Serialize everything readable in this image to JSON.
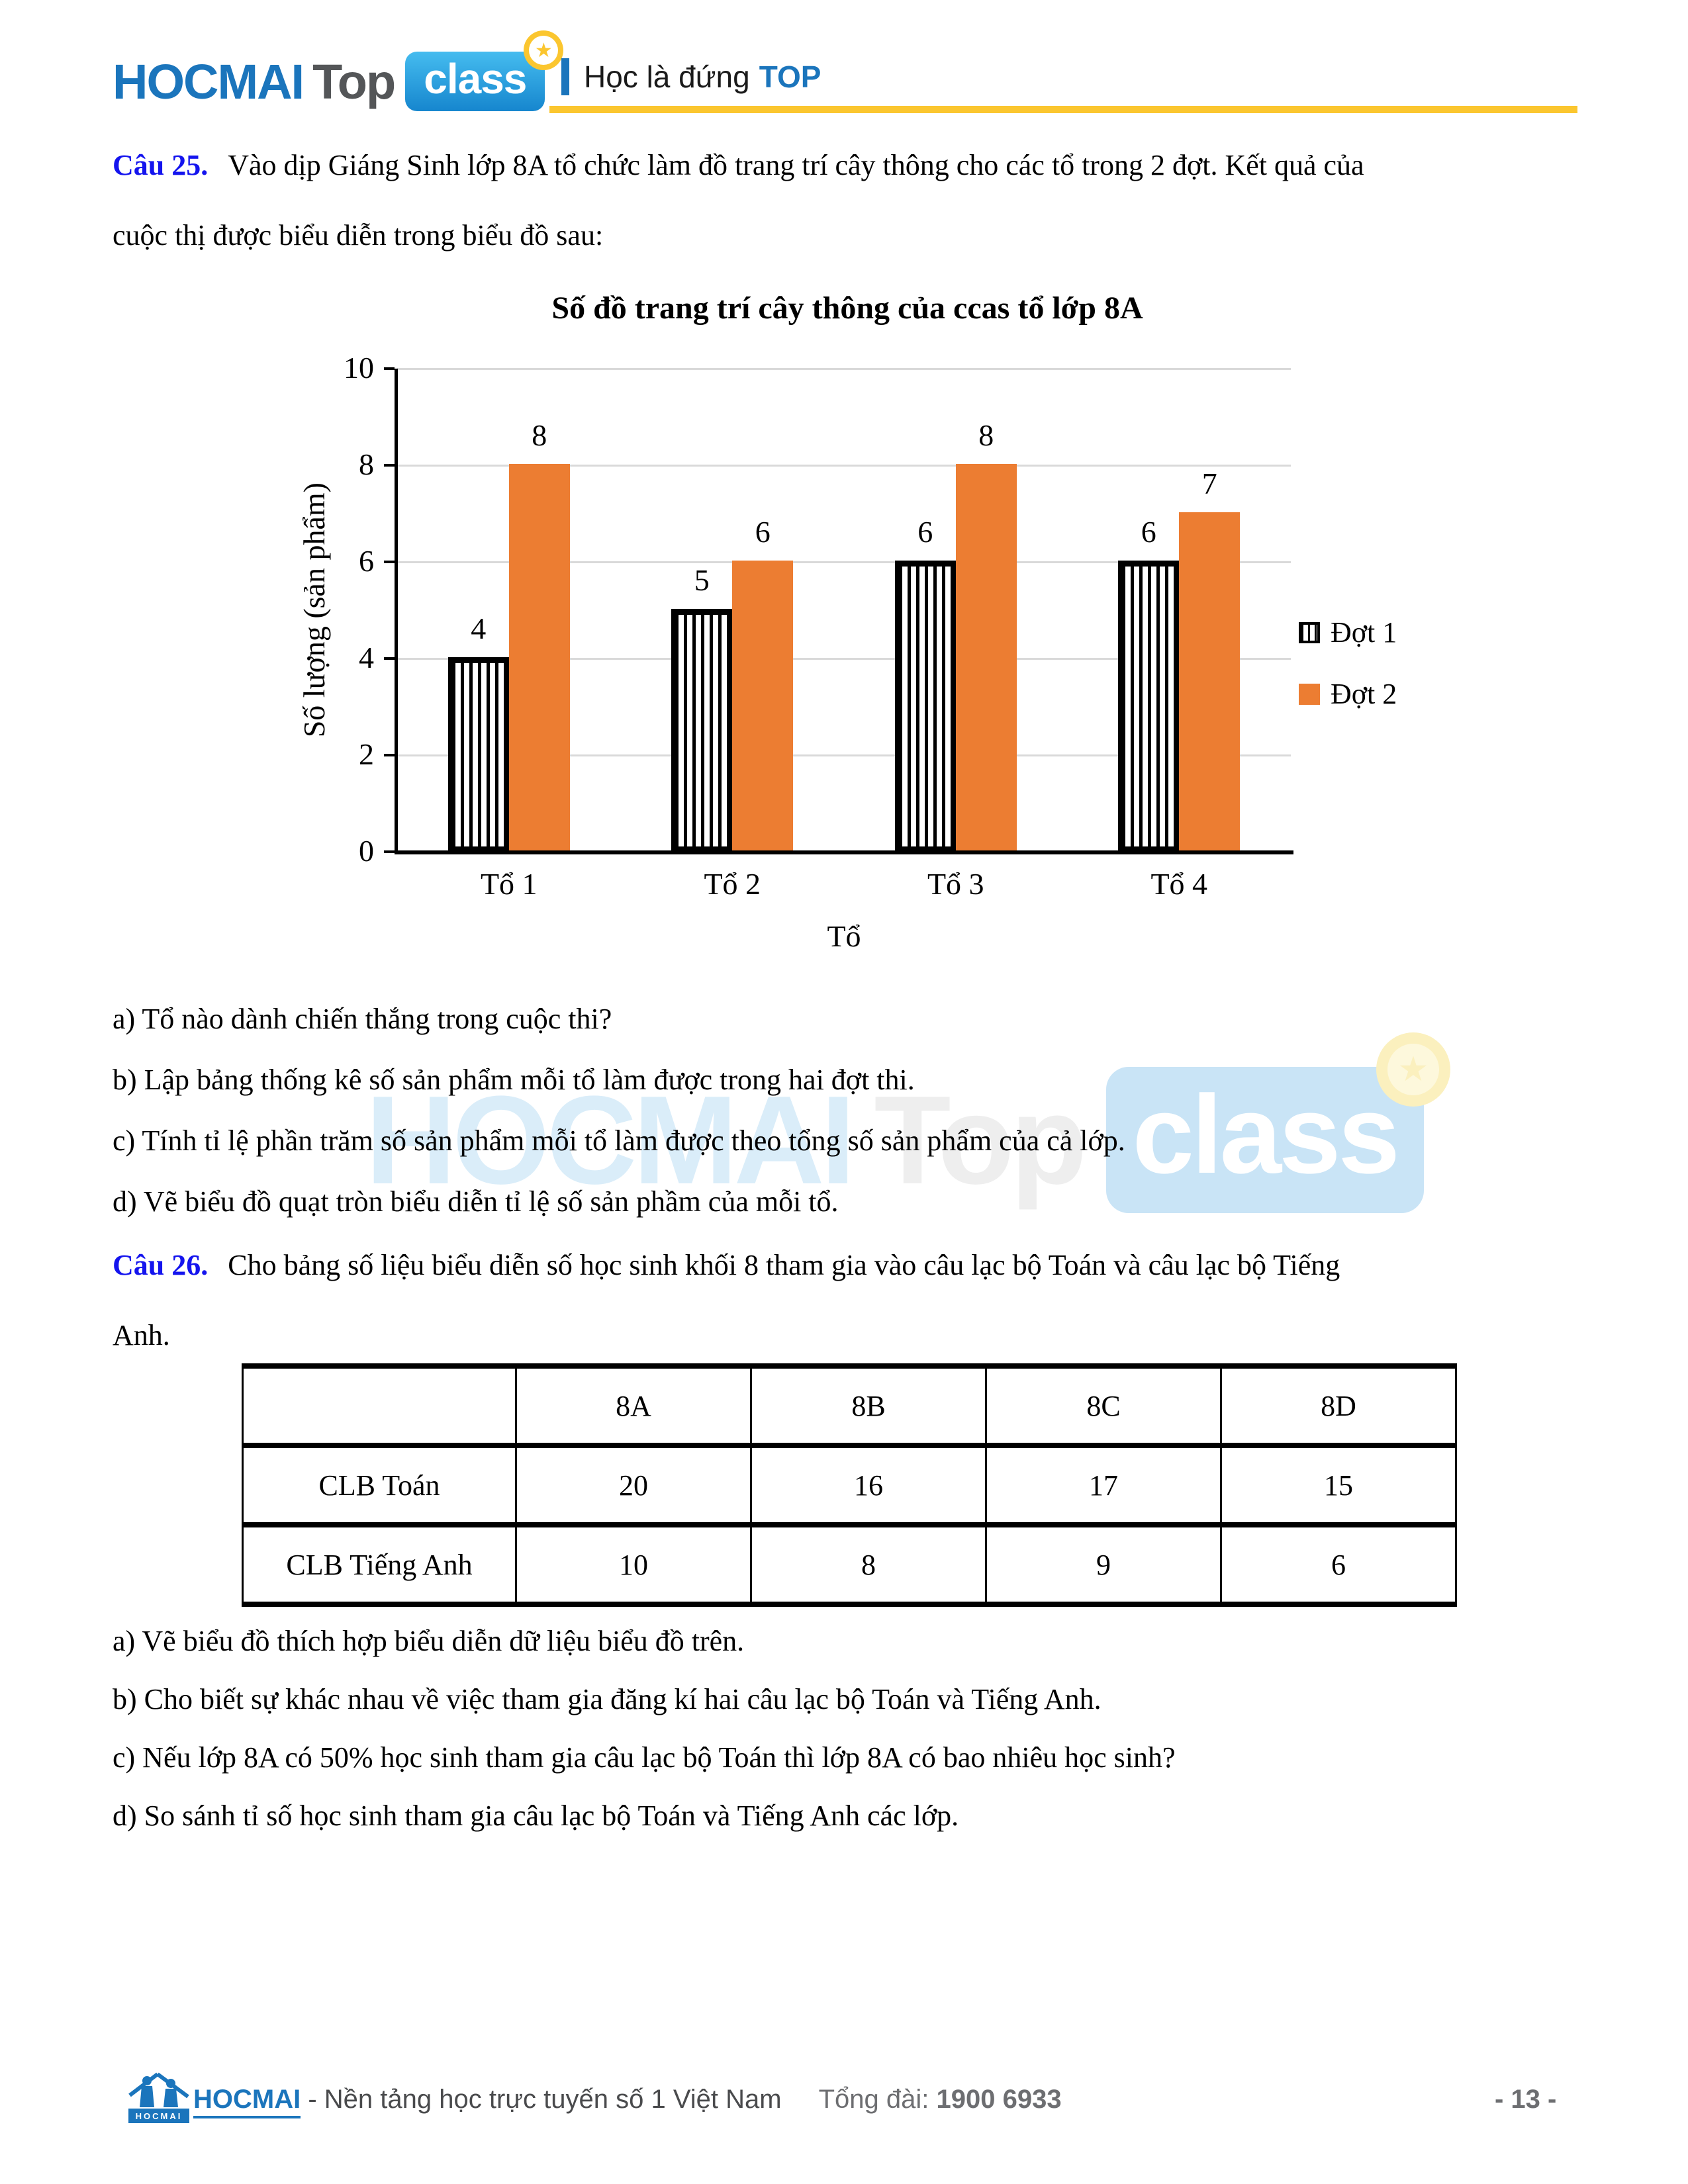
{
  "header": {
    "logo_hocmai": "HOCMAI",
    "logo_top": "Top",
    "logo_class": "class",
    "star": "★",
    "tagline_text": "Học là đứng",
    "tagline_top": "TOP"
  },
  "colors": {
    "accent_orange": "#EC7D32",
    "brand_blue": "#1B75BC",
    "question_blue": "#1414EE",
    "header_yellow": "#FBC62F",
    "gridline_gray": "#D9D9D9"
  },
  "q25": {
    "label": "Câu 25.",
    "line1": "Vào dịp Giáng Sinh lớp 8A tổ chức làm đồ trang trí cây thông cho các tổ trong 2 đợt. Kết quả của",
    "line2": "cuộc thị được biểu diễn trong biểu đồ sau:",
    "questions": [
      "a) Tổ nào dành chiến thắng trong cuộc thi?",
      "b) Lập bảng thống kê số sản phẩm mỗi tổ làm được trong hai đợt thi.",
      "c) Tính tỉ lệ phần trăm số sản phẩm mỗi tổ làm được theo tổng số sản phẩm của cả lớp.",
      "d) Vẽ biểu đồ quạt tròn biểu diễn tỉ lệ số sản phầm của mỗi tổ."
    ]
  },
  "chart_data": {
    "type": "bar",
    "title": "Số đồ trang trí cây thông của ccas tổ lớp 8A",
    "categories": [
      "Tổ 1",
      "Tổ 2",
      "Tổ 3",
      "Tổ 4"
    ],
    "series": [
      {
        "name": "Đợt 1",
        "values": [
          4,
          5,
          6,
          6
        ],
        "style": "vertical-stripes"
      },
      {
        "name": "Đợt 2",
        "values": [
          8,
          6,
          8,
          7
        ],
        "color": "#EC7D32"
      }
    ],
    "xlabel": "Tổ",
    "ylabel": "Số lượng (sản phẩm)",
    "ylim": [
      0,
      10
    ],
    "ytick_step": 2,
    "grid": true,
    "legend_position": "right"
  },
  "q26": {
    "label": "Câu 26.",
    "line1": "Cho bảng số liệu biểu diễn số học sinh khối 8 tham gia vào câu lạc bộ Toán và câu lạc bộ Tiếng",
    "line2": "Anh.",
    "table": {
      "header": [
        "",
        "8A",
        "8B",
        "8C",
        "8D"
      ],
      "rows": [
        {
          "label": "CLB Toán",
          "values": [
            20,
            16,
            17,
            15
          ]
        },
        {
          "label": "CLB Tiếng Anh",
          "values": [
            10,
            8,
            9,
            6
          ]
        }
      ]
    },
    "questions": [
      "a) Vẽ biểu đồ thích hợp biểu diễn dữ liệu biểu đồ trên.",
      "b) Cho biết sự khác nhau về việc tham gia đăng kí hai câu lạc bộ Toán và Tiếng Anh.",
      "c) Nếu lớp 8A có 50% học sinh tham gia câu lạc bộ Toán thì lớp 8A có bao nhiêu học sinh?",
      "d) So sánh tỉ số học sinh tham gia câu lạc bộ Toán và Tiếng Anh các lớp."
    ]
  },
  "watermark": {
    "hocmai": "HOCMAI",
    "top": "Top",
    "klass": "class",
    "star": "★"
  },
  "footer": {
    "logo_text": "HOCMAI",
    "brand": "HOCMAI",
    "tagline": " - Nền tảng học trực tuyến số 1 Việt Nam",
    "hotline_label": "Tổng đài: ",
    "hotline": "1900 6933",
    "page": "- 13 -"
  }
}
